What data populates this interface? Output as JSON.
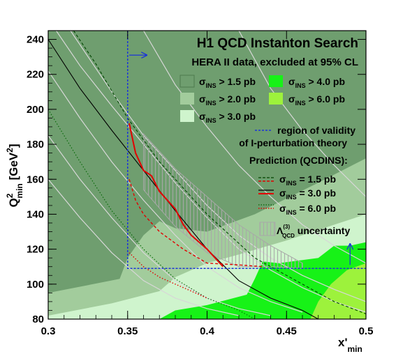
{
  "chart_data": {
    "type": "area",
    "title": "H1 QCD Instanton Search",
    "subtitle": "HERA II data, excluded at 95% CL",
    "xlabel": {
      "main": "x'",
      "sub": "min"
    },
    "ylabel": {
      "main": "Q",
      "sup": "2",
      "sub": "min",
      "unit_open": " [GeV",
      "unit_sup": "2",
      "unit_close": "]"
    },
    "xlim": [
      0.3,
      0.5
    ],
    "ylim": [
      80,
      245
    ],
    "x_ticks": [
      "0.3",
      "0.35",
      "0.4",
      "0.45",
      "0.5"
    ],
    "x_tick_values": [
      0.3,
      0.35,
      0.4,
      0.45,
      0.5
    ],
    "y_ticks": [
      "80",
      "100",
      "120",
      "140",
      "160",
      "180",
      "200",
      "220",
      "240"
    ],
    "y_tick_values": [
      80,
      100,
      120,
      140,
      160,
      180,
      200,
      220,
      240
    ],
    "colors": {
      "excl_1p5": "#6f9e6f",
      "excl_2p0": "#a2cc9c",
      "excl_3p0": "#cff4cd",
      "excl_4p0": "#17f217",
      "excl_6p0": "#9df23c",
      "validity": "#1b34d8",
      "pred_red": "#e20000",
      "band_hatch": "#a8a8a8",
      "contour": "#d7d7d7"
    },
    "exclusion_regions": [
      {
        "key": "excl_3p0",
        "polygon": [
          [
            0.3,
            80
          ],
          [
            0.5,
            80
          ],
          [
            0.5,
            245
          ],
          [
            0.3,
            245
          ]
        ]
      },
      {
        "key": "excl_2p0",
        "polygon": [
          [
            0.3,
            82
          ],
          [
            0.34,
            89
          ],
          [
            0.37,
            96
          ],
          [
            0.38,
            104
          ],
          [
            0.4,
            112
          ],
          [
            0.42,
            117
          ],
          [
            0.45,
            125
          ],
          [
            0.48,
            134
          ],
          [
            0.5,
            140
          ],
          [
            0.5,
            245
          ],
          [
            0.3,
            245
          ]
        ]
      },
      {
        "key": "excl_1p5",
        "polygon": [
          [
            0.3,
            95
          ],
          [
            0.345,
            103
          ],
          [
            0.35,
            115
          ],
          [
            0.36,
            128
          ],
          [
            0.37,
            136
          ],
          [
            0.38,
            132
          ],
          [
            0.4,
            130
          ],
          [
            0.43,
            140
          ],
          [
            0.47,
            158
          ],
          [
            0.5,
            172
          ],
          [
            0.5,
            245
          ],
          [
            0.3,
            245
          ]
        ]
      },
      {
        "key": "excl_4p0",
        "polygon": [
          [
            0.37,
            80
          ],
          [
            0.38,
            85
          ],
          [
            0.4,
            88
          ],
          [
            0.425,
            94
          ],
          [
            0.43,
            103
          ],
          [
            0.435,
            113
          ],
          [
            0.445,
            112
          ],
          [
            0.47,
            115
          ],
          [
            0.48,
            122
          ],
          [
            0.49,
            122
          ],
          [
            0.5,
            124
          ],
          [
            0.5,
            80
          ]
        ]
      },
      {
        "key": "excl_6p0",
        "polygon": [
          [
            0.465,
            80
          ],
          [
            0.47,
            90
          ],
          [
            0.478,
            100
          ],
          [
            0.488,
            108
          ],
          [
            0.5,
            112
          ],
          [
            0.5,
            80
          ]
        ]
      }
    ],
    "prediction_lines": [
      {
        "name": "1.5 pb",
        "style": "dashed",
        "color": "#004400",
        "x": [
          0.316,
          0.33,
          0.35,
          0.37,
          0.4,
          0.43,
          0.46,
          0.48,
          0.5
        ],
        "y": [
          245,
          226,
          195,
          170,
          140,
          115,
          100,
          90,
          83
        ]
      },
      {
        "name": "3.0 pb",
        "style": "solid",
        "color": "#000000",
        "x": [
          0.3,
          0.32,
          0.34,
          0.36,
          0.38,
          0.4,
          0.42,
          0.44,
          0.46,
          0.47
        ],
        "y": [
          240,
          212,
          188,
          165,
          142,
          120,
          102,
          92,
          85,
          80
        ]
      },
      {
        "name": "6.0 pb",
        "style": "dotted",
        "color": "#006600",
        "x": [
          0.3,
          0.32,
          0.34,
          0.36,
          0.38,
          0.4,
          0.42,
          0.43
        ],
        "y": [
          200,
          170,
          142,
          120,
          103,
          92,
          85,
          80
        ]
      }
    ],
    "red_segments": {
      "solid": {
        "x": [
          0.351,
          0.355,
          0.36,
          0.365,
          0.37,
          0.38,
          0.385,
          0.39,
          0.4,
          0.41
        ],
        "y": [
          192,
          175,
          165,
          162,
          153,
          143,
          134,
          128,
          120,
          110
        ]
      },
      "dashed": {
        "x": [
          0.351,
          0.355,
          0.36,
          0.37,
          0.385,
          0.4,
          0.42,
          0.435
        ],
        "y": [
          160,
          148,
          140,
          130,
          120,
          112,
          111,
          110
        ]
      },
      "dotted": {
        "x": [
          0.351,
          0.36,
          0.37,
          0.385,
          0.4
        ],
        "y": [
          118,
          110,
          104,
          98,
          92
        ]
      }
    },
    "uncertainty_band": {
      "upper": {
        "x": [
          0.36,
          0.38,
          0.4,
          0.42,
          0.44,
          0.46
        ],
        "y": [
          186,
          166,
          150,
          134,
          122,
          112
        ]
      },
      "lower": {
        "x": [
          0.36,
          0.38,
          0.4,
          0.42,
          0.44,
          0.46
        ],
        "y": [
          154,
          133,
          118,
          110,
          110,
          109
        ]
      }
    },
    "contour_lines": [
      {
        "x": [
          0.314,
          0.34,
          0.36,
          0.38,
          0.4,
          0.42,
          0.44,
          0.46,
          0.48,
          0.5
        ],
        "y": [
          245,
          210,
          185,
          165,
          145,
          128,
          115,
          105,
          97,
          90
        ]
      },
      {
        "x": [
          0.305,
          0.32,
          0.34,
          0.36,
          0.38,
          0.4,
          0.42,
          0.44,
          0.46,
          0.48,
          0.5
        ],
        "y": [
          245,
          225,
          202,
          180,
          158,
          138,
          120,
          108,
          98,
          90,
          84
        ]
      },
      {
        "x": [
          0.3,
          0.32,
          0.34,
          0.36,
          0.38,
          0.4,
          0.42,
          0.44,
          0.46
        ],
        "y": [
          222,
          195,
          170,
          148,
          128,
          110,
          98,
          90,
          84
        ]
      },
      {
        "x": [
          0.3,
          0.32,
          0.34,
          0.36,
          0.38,
          0.4,
          0.42,
          0.44
        ],
        "y": [
          185,
          160,
          138,
          118,
          102,
          92,
          86,
          82
        ]
      },
      {
        "x": [
          0.3,
          0.32,
          0.34,
          0.36,
          0.38,
          0.4,
          0.42
        ],
        "y": [
          160,
          138,
          118,
          102,
          92,
          86,
          82
        ]
      },
      {
        "x": [
          0.36,
          0.38,
          0.4,
          0.42,
          0.44,
          0.46,
          0.48,
          0.5
        ],
        "y": [
          245,
          214,
          190,
          168,
          150,
          134,
          122,
          112
        ]
      },
      {
        "x": [
          0.42,
          0.44,
          0.46,
          0.48,
          0.5
        ],
        "y": [
          245,
          212,
          188,
          168,
          150
        ]
      }
    ],
    "validity_region": {
      "x_min": 0.35,
      "q2_min": 109
    },
    "validity_arrows": [
      {
        "from": [
          0.351,
          231
        ],
        "to": [
          0.362,
          231
        ]
      },
      {
        "from": [
          0.49,
          111
        ],
        "to": [
          0.49,
          123
        ]
      }
    ],
    "legend": {
      "excl_items": [
        {
          "key": "excl_1p5",
          "sym": "σ",
          "sub": "INS",
          "rest": " > 1.5 pb"
        },
        {
          "key": "excl_4p0",
          "sym": "σ",
          "sub": "INS",
          "rest": " > 4.0 pb"
        },
        {
          "key": "excl_2p0",
          "sym": "σ",
          "sub": "INS",
          "rest": " > 2.0 pb"
        },
        {
          "key": "excl_6p0",
          "sym": "σ",
          "sub": "INS",
          "rest": " > 6.0 pb"
        },
        {
          "key": "excl_3p0",
          "sym": "σ",
          "sub": "INS",
          "rest": " > 3.0 pb"
        }
      ],
      "validity_line1": "region of validity",
      "validity_line2": "of I-perturbation theory",
      "prediction_header": "Prediction (QCDINS):",
      "pred_items": [
        {
          "style": "dashed",
          "sym": "σ",
          "sub": "INS",
          "rest": " = 1.5 pb"
        },
        {
          "style": "solid",
          "sym": "σ",
          "sub": "INS",
          "rest": " = 3.0 pb"
        },
        {
          "style": "dotted",
          "sym": "σ",
          "sub": "INS",
          "rest": " = 6.0 pb"
        }
      ],
      "uncertainty": {
        "sym": "Λ",
        "sup": "(3)",
        "sub": "QCD",
        "rest": " uncertainty"
      }
    }
  }
}
